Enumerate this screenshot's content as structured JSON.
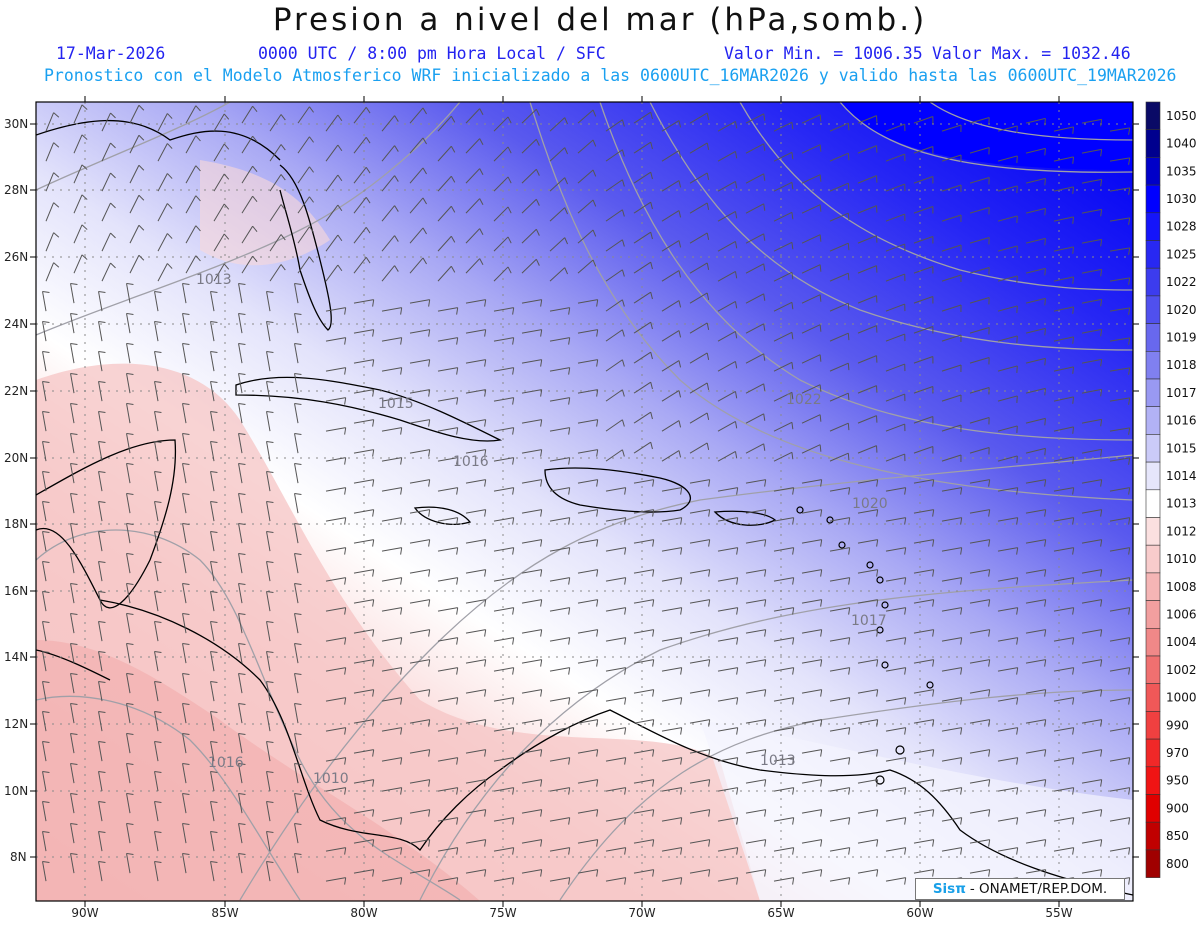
{
  "header": {
    "title": "Presion a nivel del mar (hPa,somb.)",
    "date": "17-Mar-2026",
    "time_info": "0000 UTC / 8:00 pm Hora Local / SFC",
    "min_label": "Valor Min. = 1006.35",
    "max_label": "Valor Max. = 1032.46",
    "forecast_info": "Pronostico con el Modelo Atmosferico WRF inicializado a las 0600UTC_16MAR2026 y valido hasta las  0600UTC_19MAR2026"
  },
  "map": {
    "lon_labels": [
      "90W",
      "85W",
      "80W",
      "75W",
      "70W",
      "65W",
      "60W",
      "55W"
    ],
    "lat_labels": [
      "30N",
      "28N",
      "26N",
      "24N",
      "22N",
      "20N",
      "18N",
      "16N",
      "14N",
      "12N",
      "10N",
      "8N"
    ],
    "isobar_labels": [
      "1013",
      "1015",
      "1016",
      "1022",
      "1020",
      "1017",
      "1013",
      "1010",
      "1016"
    ]
  },
  "colorbar": {
    "levels": [
      "1050",
      "1040",
      "1035",
      "1030",
      "1028",
      "1025",
      "1022",
      "1020",
      "1019",
      "1018",
      "1017",
      "1016",
      "1015",
      "1014",
      "1013",
      "1012",
      "1010",
      "1008",
      "1006",
      "1004",
      "1002",
      "1000",
      "990",
      "970",
      "950",
      "900",
      "850",
      "800"
    ],
    "colors": [
      "#0a0a66",
      "#00008e",
      "#0000c8",
      "#0000ff",
      "#1515fa",
      "#2828f2",
      "#3c3cee",
      "#5050ee",
      "#6868ee",
      "#8080f0",
      "#9999f2",
      "#b2b2f5",
      "#cbcbf8",
      "#e6e6fb",
      "#ffffff",
      "#fbe0e0",
      "#f8cccc",
      "#f5b5b5",
      "#f29f9f",
      "#f08888",
      "#f07070",
      "#f05858",
      "#f04040",
      "#f02828",
      "#f01414",
      "#e00000",
      "#c00000",
      "#a00000"
    ]
  },
  "credit": {
    "logo": "Sisπ",
    "text": "- ONAMET/REP.DOM."
  }
}
